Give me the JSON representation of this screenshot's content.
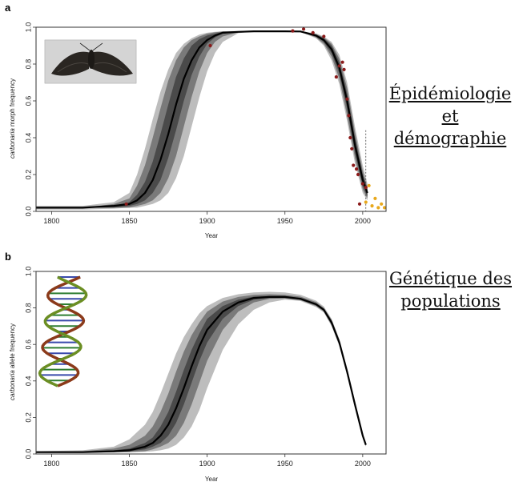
{
  "panel_a": {
    "letter": "a",
    "side_note": [
      "Épidémiologie",
      "et",
      "démographie"
    ],
    "image_icon": "moth-photo",
    "chart_data": {
      "type": "line",
      "xlabel": "Year",
      "ylabel_italic": "carbonaria",
      "ylabel_rest": " morph frequency",
      "xlim": [
        1790,
        2015
      ],
      "ylim": [
        0,
        1
      ],
      "xticks": [
        1800,
        1850,
        1900,
        1950,
        2000
      ],
      "yticks": [
        0.0,
        0.2,
        0.4,
        0.6,
        0.8,
        1.0
      ],
      "grid": false,
      "legend": "none",
      "model_curve": {
        "x": [
          1790,
          1820,
          1840,
          1850,
          1855,
          1860,
          1865,
          1870,
          1875,
          1880,
          1885,
          1890,
          1895,
          1900,
          1905,
          1910,
          1920,
          1930,
          1940,
          1950,
          1960,
          1970,
          1975,
          1980,
          1985,
          1990,
          1995,
          2000,
          2003
        ],
        "y": [
          0.02,
          0.02,
          0.03,
          0.04,
          0.06,
          0.1,
          0.17,
          0.28,
          0.42,
          0.58,
          0.72,
          0.82,
          0.89,
          0.93,
          0.955,
          0.97,
          0.975,
          0.978,
          0.978,
          0.978,
          0.977,
          0.955,
          0.93,
          0.88,
          0.78,
          0.6,
          0.36,
          0.17,
          0.1
        ],
        "color": "#000000"
      },
      "bands": [
        {
          "level": "inner",
          "lower": [
            0.02,
            0.02,
            0.02,
            0.03,
            0.04,
            0.06,
            0.1,
            0.17,
            0.29,
            0.44,
            0.6,
            0.74,
            0.84,
            0.91,
            0.945,
            0.965,
            0.975,
            0.978,
            0.978,
            0.978,
            0.977,
            0.95,
            0.92,
            0.86,
            0.75,
            0.56,
            0.32,
            0.14,
            0.08
          ],
          "upper": [
            0.02,
            0.02,
            0.03,
            0.05,
            0.09,
            0.16,
            0.27,
            0.42,
            0.58,
            0.73,
            0.83,
            0.9,
            0.935,
            0.955,
            0.965,
            0.975,
            0.978,
            0.978,
            0.978,
            0.978,
            0.977,
            0.96,
            0.94,
            0.9,
            0.81,
            0.64,
            0.4,
            0.2,
            0.12
          ],
          "color": "#4a4a4a"
        },
        {
          "level": "middle",
          "lower": [
            0.02,
            0.02,
            0.02,
            0.02,
            0.03,
            0.04,
            0.06,
            0.1,
            0.18,
            0.3,
            0.46,
            0.62,
            0.76,
            0.86,
            0.92,
            0.95,
            0.972,
            0.978,
            0.978,
            0.978,
            0.976,
            0.945,
            0.91,
            0.84,
            0.72,
            0.52,
            0.29,
            0.12,
            0.07
          ],
          "upper": [
            0.02,
            0.02,
            0.04,
            0.07,
            0.14,
            0.25,
            0.4,
            0.56,
            0.71,
            0.82,
            0.89,
            0.93,
            0.95,
            0.965,
            0.972,
            0.977,
            0.978,
            0.978,
            0.978,
            0.978,
            0.978,
            0.963,
            0.945,
            0.91,
            0.83,
            0.67,
            0.43,
            0.22,
            0.13
          ],
          "color": "#7a7a7a"
        },
        {
          "level": "outer",
          "lower": [
            0.01,
            0.01,
            0.015,
            0.02,
            0.02,
            0.03,
            0.04,
            0.06,
            0.1,
            0.18,
            0.3,
            0.46,
            0.62,
            0.76,
            0.86,
            0.92,
            0.968,
            0.977,
            0.978,
            0.978,
            0.975,
            0.94,
            0.9,
            0.82,
            0.69,
            0.49,
            0.26,
            0.1,
            0.06
          ],
          "upper": [
            0.03,
            0.03,
            0.05,
            0.1,
            0.2,
            0.34,
            0.5,
            0.65,
            0.77,
            0.86,
            0.91,
            0.94,
            0.96,
            0.97,
            0.975,
            0.978,
            0.98,
            0.98,
            0.98,
            0.98,
            0.979,
            0.966,
            0.95,
            0.92,
            0.85,
            0.7,
            0.46,
            0.25,
            0.15
          ],
          "color": "#bdbdbd"
        }
      ],
      "observed_points": {
        "color": "#8b1a1a",
        "x": [
          1848,
          1902,
          1955,
          1962,
          1968,
          1975,
          1983,
          1985,
          1987,
          1988,
          1990,
          1991,
          1992,
          1993,
          1994,
          1996,
          1997,
          1998,
          2000,
          2002
        ],
        "y": [
          0.04,
          0.9,
          0.98,
          0.99,
          0.97,
          0.95,
          0.73,
          0.79,
          0.81,
          0.77,
          0.61,
          0.52,
          0.4,
          0.34,
          0.25,
          0.23,
          0.2,
          0.04,
          0.15,
          0.13
        ]
      },
      "later_points": {
        "color": "#e8a81c",
        "x": [
          2002,
          2004,
          2006,
          2008,
          2010,
          2012,
          2014
        ],
        "y": [
          0.05,
          0.14,
          0.03,
          0.07,
          0.02,
          0.04,
          0.02
        ]
      },
      "vline_year": 2002
    }
  },
  "panel_b": {
    "letter": "b",
    "side_note": [
      "Génétique des",
      "populations"
    ],
    "image_icon": "dna-double-helix",
    "chart_data": {
      "type": "line",
      "xlabel": "Year",
      "ylabel_italic": "carbonaria",
      "ylabel_rest": " allele frequency",
      "xlim": [
        1790,
        2015
      ],
      "ylim": [
        0,
        1
      ],
      "xticks": [
        1800,
        1850,
        1900,
        1950,
        2000
      ],
      "yticks": [
        0.0,
        0.2,
        0.4,
        0.6,
        0.8,
        1.0
      ],
      "grid": false,
      "legend": "none",
      "model_curve": {
        "x": [
          1790,
          1820,
          1840,
          1850,
          1860,
          1865,
          1870,
          1875,
          1880,
          1885,
          1890,
          1895,
          1900,
          1910,
          1920,
          1930,
          1940,
          1950,
          1960,
          1970,
          1975,
          1980,
          1985,
          1990,
          1995,
          2000,
          2002
        ],
        "y": [
          0.01,
          0.01,
          0.015,
          0.02,
          0.04,
          0.06,
          0.1,
          0.16,
          0.25,
          0.36,
          0.48,
          0.59,
          0.68,
          0.78,
          0.83,
          0.855,
          0.86,
          0.86,
          0.85,
          0.82,
          0.79,
          0.72,
          0.61,
          0.45,
          0.27,
          0.1,
          0.05
        ],
        "color": "#000000"
      },
      "bands": [
        {
          "level": "inner",
          "lower": [
            0.01,
            0.01,
            0.01,
            0.015,
            0.025,
            0.04,
            0.06,
            0.1,
            0.17,
            0.27,
            0.39,
            0.51,
            0.61,
            0.74,
            0.81,
            0.845,
            0.855,
            0.855,
            0.845,
            0.815,
            0.785,
            0.71,
            0.6,
            0.44,
            0.26,
            0.09,
            0.045
          ],
          "upper": [
            0.01,
            0.01,
            0.02,
            0.03,
            0.06,
            0.09,
            0.15,
            0.23,
            0.34,
            0.46,
            0.57,
            0.66,
            0.74,
            0.81,
            0.845,
            0.862,
            0.865,
            0.865,
            0.855,
            0.825,
            0.795,
            0.73,
            0.62,
            0.46,
            0.28,
            0.11,
            0.055
          ],
          "color": "#4a4a4a"
        },
        {
          "level": "middle",
          "lower": [
            0.01,
            0.01,
            0.01,
            0.01,
            0.015,
            0.025,
            0.04,
            0.06,
            0.1,
            0.17,
            0.27,
            0.39,
            0.51,
            0.68,
            0.78,
            0.83,
            0.85,
            0.852,
            0.842,
            0.81,
            0.78,
            0.705,
            0.595,
            0.435,
            0.255,
            0.09,
            0.045
          ],
          "upper": [
            0.01,
            0.015,
            0.03,
            0.05,
            0.1,
            0.15,
            0.23,
            0.33,
            0.45,
            0.56,
            0.65,
            0.72,
            0.78,
            0.835,
            0.86,
            0.872,
            0.875,
            0.872,
            0.862,
            0.832,
            0.8,
            0.735,
            0.625,
            0.465,
            0.285,
            0.11,
            0.055
          ],
          "color": "#7a7a7a"
        },
        {
          "level": "outer",
          "lower": [
            0.005,
            0.005,
            0.008,
            0.01,
            0.012,
            0.015,
            0.02,
            0.03,
            0.05,
            0.09,
            0.15,
            0.24,
            0.36,
            0.57,
            0.71,
            0.79,
            0.83,
            0.845,
            0.838,
            0.805,
            0.775,
            0.7,
            0.59,
            0.43,
            0.25,
            0.085,
            0.04
          ],
          "upper": [
            0.015,
            0.02,
            0.04,
            0.08,
            0.16,
            0.23,
            0.33,
            0.44,
            0.55,
            0.64,
            0.71,
            0.77,
            0.81,
            0.855,
            0.875,
            0.885,
            0.888,
            0.885,
            0.872,
            0.84,
            0.808,
            0.74,
            0.63,
            0.47,
            0.29,
            0.115,
            0.06
          ],
          "color": "#bdbdbd"
        }
      ]
    }
  }
}
